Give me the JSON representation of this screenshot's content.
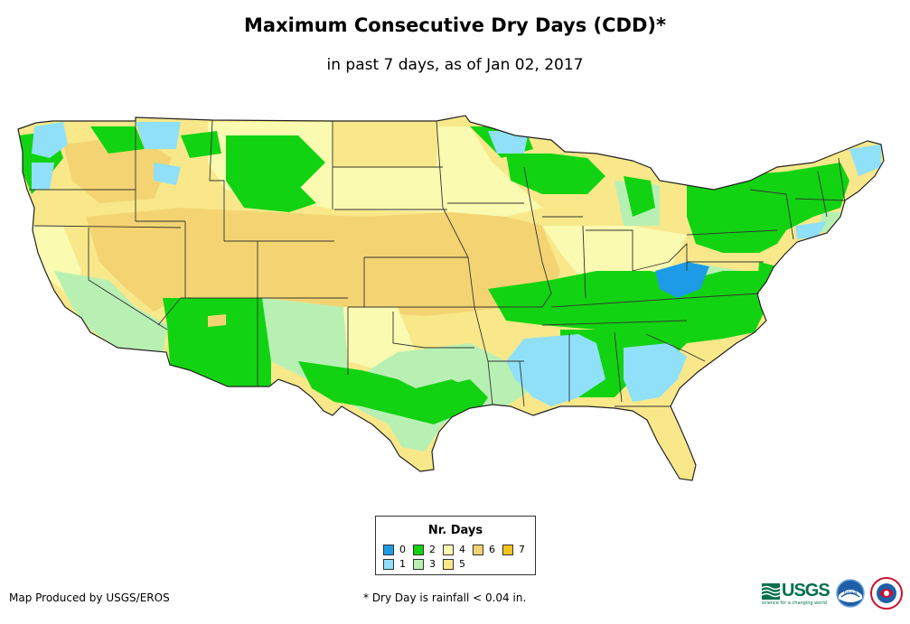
{
  "title": "Maximum Consecutive Dry Days (CDD)*",
  "subtitle": "in past 7 days, as of Jan 02, 2017",
  "colors": {
    "c0": "#1e9be6",
    "c1": "#8fe0f8",
    "c2": "#12d312",
    "c3": "#b8f0b4",
    "c4": "#fafab0",
    "c5": "#f8e88a",
    "c6": "#f4d472",
    "c7": "#f4c418",
    "border": "#333333"
  },
  "legend": {
    "title": "Nr. Days",
    "items": [
      {
        "label": "0",
        "color": "#1e9be6"
      },
      {
        "label": "1",
        "color": "#8fe0f8"
      },
      {
        "label": "2",
        "color": "#12d312"
      },
      {
        "label": "3",
        "color": "#b8f0b4"
      },
      {
        "label": "4",
        "color": "#fafab0"
      },
      {
        "label": "5",
        "color": "#f8e88a"
      },
      {
        "label": "6",
        "color": "#f4d472"
      },
      {
        "label": "7",
        "color": "#f4c418"
      }
    ]
  },
  "credit": "Map Produced by USGS/EROS",
  "footnote": "* Dry Day is rainfall < 0.04 in.",
  "logos": {
    "usgs": "USGS",
    "usgs_tagline": "science for a changing world",
    "noaa": "noaa",
    "nws_icon": "nws-logo-icon"
  }
}
